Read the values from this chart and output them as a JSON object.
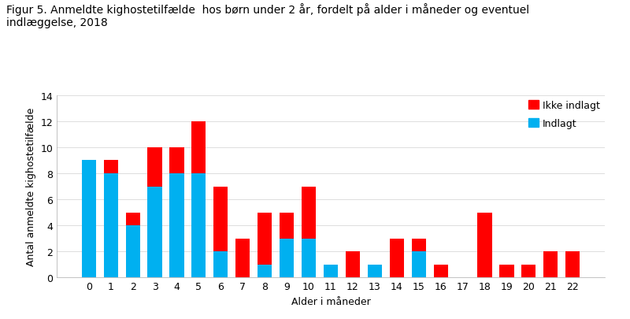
{
  "title_line1": "Figur 5. Anmeldte kighostetilfælde  hos børn under 2 år, fordelt på alder i måneder og eventuel",
  "title_line2": "indlæggelse, 2018",
  "xlabel": "Alder i måneder",
  "ylabel": "Antal anmeldte kighostetilfælde",
  "categories": [
    0,
    1,
    2,
    3,
    4,
    5,
    6,
    7,
    8,
    9,
    10,
    11,
    12,
    13,
    14,
    15,
    16,
    17,
    18,
    19,
    20,
    21,
    22
  ],
  "indlagt": [
    9,
    8,
    4,
    7,
    8,
    8,
    2,
    0,
    1,
    3,
    3,
    1,
    0,
    1,
    0,
    2,
    0,
    0,
    0,
    0,
    0,
    0,
    0
  ],
  "ikke_indlagt": [
    0,
    1,
    1,
    3,
    2,
    4,
    5,
    3,
    4,
    2,
    4,
    0,
    2,
    0,
    3,
    1,
    1,
    0,
    5,
    1,
    1,
    2,
    2
  ],
  "color_indlagt": "#00b0f0",
  "color_ikke_indlagt": "#ff0000",
  "legend_ikke_indlagt": "Ikke indlagt",
  "legend_indlagt": "Indlagt",
  "ylim": [
    0,
    14
  ],
  "yticks": [
    0,
    2,
    4,
    6,
    8,
    10,
    12,
    14
  ],
  "background_color": "#ffffff",
  "title_color": "#000000",
  "title_fontsize": 10,
  "axis_fontsize": 9
}
